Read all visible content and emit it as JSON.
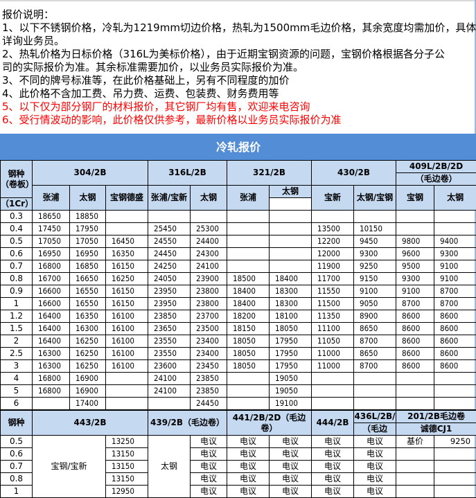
{
  "notes": {
    "heading": "报价说明：",
    "lines": [
      {
        "text": "1、以下不锈钢价格，冷轧为1219mm切边价格，热轧为1500mm毛边价格，其余宽度均需加价，具体",
        "red": false
      },
      {
        "text": "详询业务员。",
        "red": false
      },
      {
        "text": "2、热轧价格为日标价格（316L为美标价格），由于近期宝钢资源的问题，宝钢价格根据各分子公",
        "red": false
      },
      {
        "text": "司的实际报价为准。其余标准需要加价，以业务员实际报价为准。",
        "red": false
      },
      {
        "text": "3、不同的牌号标准等，在此价格基础上，另有不同程度的加价",
        "red": false
      },
      {
        "text": "4、此价格不含加工费、吊力费、运费、包装费、财务费用等",
        "red": false
      },
      {
        "text": "5、以下仅为部分钢厂的材料报价，其它钢厂均有售，欢迎来电咨询",
        "red": true
      },
      {
        "text": "6、受行情波动的影响，此价格仅供参考，最新价格以业务员实际报价为准",
        "red": true
      }
    ]
  },
  "colors": {
    "title_bg": "#538dd5",
    "header_bg": "#c5d9f1",
    "red_text": "#ff0000"
  },
  "cold": {
    "title": "冷轧报价",
    "spec_header": "钢种（卷板）",
    "groups": [
      "304/2B",
      "316L/2B",
      "321/2B",
      "430/2B",
      "409L/2B/2D",
      "（毛边卷）"
    ],
    "sub": [
      "张浦",
      "太钢",
      "宝钢德盛",
      "张浦/宝新",
      "太钢",
      "张浦",
      "太钢",
      "（1Cr）",
      "宝新",
      "太钢/宝钢",
      "宝钢",
      "太钢"
    ],
    "rows": [
      [
        "0.3",
        "18650",
        "18850",
        "",
        "",
        "",
        "",
        "",
        "",
        "",
        "",
        ""
      ],
      [
        "0.4",
        "17450",
        "17950",
        "",
        "25450",
        "25300",
        "",
        "",
        "13500",
        "10150",
        "",
        ""
      ],
      [
        "0.5",
        "17050",
        "17050",
        "16450",
        "24550",
        "24400",
        "",
        "",
        "12200",
        "9450",
        "9800",
        "9400"
      ],
      [
        "0.6",
        "16950",
        "16950",
        "16350",
        "24450",
        "24300",
        "",
        "",
        "12000",
        "9300",
        "9600",
        "9300"
      ],
      [
        "0.7",
        "16800",
        "16850",
        "16150",
        "24250",
        "24100",
        "",
        "",
        "11900",
        "9250",
        "9500",
        "9100"
      ],
      [
        "0.8",
        "16700",
        "16650",
        "16250",
        "24050",
        "23900",
        "18500",
        "18400",
        "11700",
        "9150",
        "9300",
        "9100"
      ],
      [
        "0.9",
        "16600",
        "16550",
        "16150",
        "23950",
        "23800",
        "18400",
        "18300",
        "11550",
        "9100",
        "9100",
        "8700"
      ],
      [
        "1",
        "16600",
        "16550",
        "16150",
        "23950",
        "23800",
        "18400",
        "18300",
        "11500",
        "9050",
        "8700",
        "8700"
      ],
      [
        "1.2",
        "16400",
        "16350",
        "16100",
        "23850",
        "23700",
        "18200",
        "18100",
        "11350",
        "8900",
        "8600",
        "8600"
      ],
      [
        "1.5",
        "16400",
        "16300",
        "16100",
        "23650",
        "23500",
        "18150",
        "18050",
        "11100",
        "8650",
        "8600",
        "8600"
      ],
      [
        "2",
        "16400",
        "16250",
        "16100",
        "23550",
        "23400",
        "18050",
        "17950",
        "11050",
        "8700",
        "8600",
        "8600"
      ],
      [
        "2.5",
        "16300",
        "16250",
        "16100",
        "23550",
        "23400",
        "18050",
        "17950",
        "11000",
        "8650",
        "8600",
        "8600"
      ],
      [
        "3",
        "16300",
        "16250",
        "16100",
        "23600",
        "23450",
        "18050",
        "17950",
        "11000",
        "8700",
        "8600",
        "8600"
      ],
      [
        "4",
        "16800",
        "16900",
        "",
        "24100",
        "23850",
        "",
        "19050",
        "",
        "",
        "",
        ""
      ],
      [
        "5",
        "16800",
        "16900",
        "",
        "24100",
        "23850",
        "",
        "19050",
        "",
        "",
        "",
        ""
      ],
      [
        "6",
        "",
        "17400",
        "",
        "",
        "24450",
        "",
        "19100",
        "",
        "",
        "",
        ""
      ]
    ]
  },
  "second": {
    "spec_header": "钢种",
    "groups": [
      "443/2B",
      "439/2B（毛边卷）",
      "441/2B/2D（毛边卷）",
      "444/2B",
      "436L/2B/",
      "（毛边",
      "201/2B毛边卷",
      "诚德CJ1"
    ],
    "mill_443": "宝钢/宝新",
    "mill_439": "太钢",
    "base_label": "基价",
    "base_price": "9250",
    "rows": [
      {
        "spec": "0.5",
        "p443": "13250",
        "cells": [
          "电议",
          "电议",
          "电议",
          "电议",
          "电议"
        ]
      },
      {
        "spec": "0.6",
        "p443": "13150",
        "cells": [
          "电议",
          "电议",
          "电议",
          "电议",
          "电议"
        ]
      },
      {
        "spec": "0.7",
        "p443": "13150",
        "cells": [
          "电议",
          "电议",
          "电议",
          "电议",
          "电议"
        ]
      },
      {
        "spec": "0.8",
        "p443": "13150",
        "cells": [
          "电议",
          "电议",
          "电议",
          "电议",
          "电议"
        ]
      },
      {
        "spec": "1",
        "p443": "12950",
        "cells": [
          "电议",
          "电议",
          "电议",
          "电议",
          "电议"
        ]
      }
    ]
  }
}
